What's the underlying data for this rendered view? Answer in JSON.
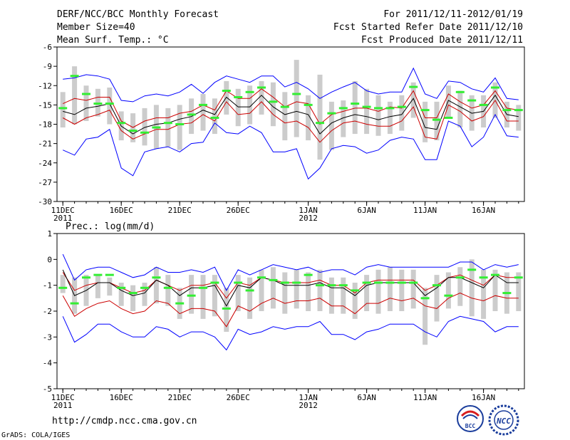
{
  "header": {
    "title": "DERF/NCC/BCC Monthly Forecast",
    "member_size": "Member Size=40",
    "variable": "Mean Surf. Temp.: °C",
    "forecast_period": "For 2011/12/11-2012/01/19",
    "start_date": "Fcst Started Refer Date 2011/12/10",
    "produced_date": "Fcst Produced Date 2011/12/11"
  },
  "footer": {
    "url": "http://cmdp.ncc.cma.gov.cn",
    "credit": "GrADS: COLA/IGES",
    "logo_left_text": "BCC",
    "logo_right_text": "NCC"
  },
  "chart_data": [
    {
      "type": "line",
      "name": "temperature",
      "title": "",
      "ylabel": "Mean Surf. Temp.: °C",
      "ylim": [
        -30,
        -6
      ],
      "yticks": [
        -6,
        -9,
        -12,
        -15,
        -18,
        -21,
        -24,
        -27,
        -30
      ],
      "x_days": 40,
      "xticks": [
        {
          "day": 1,
          "label": "11DEC",
          "sub": "2011"
        },
        {
          "day": 6,
          "label": "16DEC",
          "sub": ""
        },
        {
          "day": 11,
          "label": "21DEC",
          "sub": ""
        },
        {
          "day": 16,
          "label": "26DEC",
          "sub": ""
        },
        {
          "day": 22,
          "label": "1JAN",
          "sub": "2012"
        },
        {
          "day": 27,
          "label": "6JAN",
          "sub": ""
        },
        {
          "day": 32,
          "label": "11JAN",
          "sub": ""
        },
        {
          "day": 37,
          "label": "16JAN",
          "sub": ""
        }
      ],
      "series": [
        {
          "name": "ensemble-max",
          "color": "#0000ff",
          "values": [
            -11.0,
            -10.8,
            -10.3,
            -10.5,
            -11.0,
            -14.3,
            -14.5,
            -13.6,
            -13.3,
            -13.6,
            -13.0,
            -11.8,
            -13.2,
            -11.5,
            -10.5,
            -11.0,
            -11.5,
            -10.5,
            -10.5,
            -12.2,
            -11.5,
            -12.5,
            -14.0,
            -13.0,
            -12.2,
            -11.5,
            -12.8,
            -13.3,
            -13.0,
            -13.0,
            -9.3,
            -13.3,
            -14.0,
            -11.3,
            -11.5,
            -12.5,
            -13.0,
            -10.8,
            -14.0,
            -14.2
          ]
        },
        {
          "name": "ensemble-min",
          "color": "#0000ff",
          "values": [
            -22.0,
            -22.8,
            -20.3,
            -20.0,
            -18.8,
            -24.8,
            -26.0,
            -22.3,
            -21.8,
            -21.5,
            -22.3,
            -21.0,
            -20.8,
            -17.8,
            -19.3,
            -19.5,
            -18.3,
            -19.3,
            -22.3,
            -22.3,
            -21.8,
            -26.5,
            -24.8,
            -21.8,
            -21.3,
            -21.5,
            -22.5,
            -22.0,
            -20.5,
            -20.0,
            -20.3,
            -23.5,
            -23.5,
            -17.5,
            -18.3,
            -21.5,
            -20.0,
            -16.5,
            -19.8,
            -20.0
          ]
        },
        {
          "name": "upper-red",
          "color": "#cc0000",
          "values": [
            -14.8,
            -14.0,
            -14.3,
            -13.8,
            -13.8,
            -17.5,
            -18.5,
            -17.5,
            -17.0,
            -17.0,
            -16.3,
            -16.0,
            -15.0,
            -15.8,
            -12.8,
            -14.0,
            -14.0,
            -12.5,
            -13.8,
            -15.3,
            -14.5,
            -14.8,
            -18.0,
            -16.5,
            -16.0,
            -15.5,
            -15.5,
            -16.0,
            -15.3,
            -15.5,
            -12.8,
            -17.0,
            -17.0,
            -13.3,
            -14.5,
            -15.5,
            -15.0,
            -12.8,
            -15.5,
            -15.8
          ]
        },
        {
          "name": "lower-red",
          "color": "#cc0000",
          "values": [
            -17.0,
            -18.0,
            -17.0,
            -16.5,
            -15.8,
            -19.0,
            -20.3,
            -19.5,
            -18.8,
            -18.8,
            -18.0,
            -17.8,
            -16.5,
            -17.5,
            -14.5,
            -16.5,
            -16.3,
            -14.5,
            -16.5,
            -17.8,
            -17.5,
            -18.5,
            -20.8,
            -19.0,
            -17.8,
            -17.5,
            -18.0,
            -18.3,
            -18.3,
            -17.5,
            -15.3,
            -20.0,
            -20.3,
            -15.0,
            -16.0,
            -17.5,
            -16.8,
            -14.3,
            -17.5,
            -17.5
          ]
        },
        {
          "name": "ensemble-mean",
          "color": "#000000",
          "values": [
            -16.0,
            -16.5,
            -15.5,
            -15.2,
            -14.8,
            -18.3,
            -19.5,
            -18.5,
            -18.0,
            -17.8,
            -17.2,
            -16.8,
            -15.8,
            -16.5,
            -13.8,
            -15.3,
            -15.3,
            -13.5,
            -15.3,
            -16.5,
            -16.0,
            -16.5,
            -19.5,
            -17.8,
            -17.0,
            -16.5,
            -16.8,
            -17.3,
            -16.8,
            -16.5,
            -14.0,
            -18.5,
            -18.8,
            -14.3,
            -15.3,
            -16.3,
            -16.0,
            -13.5,
            -16.5,
            -16.8
          ]
        },
        {
          "name": "observed",
          "color": "#33ee33",
          "values": [
            -15.5,
            -10.5,
            -13.3,
            -14.8,
            -14.8,
            -17.8,
            -19.0,
            -19.3,
            -18.5,
            -17.8,
            -18.0,
            -16.5,
            -15.0,
            -17.0,
            -12.8,
            -13.8,
            -13.0,
            -12.3,
            -14.5,
            -15.3,
            -13.3,
            -15.0,
            -17.8,
            -16.3,
            -15.5,
            -14.8,
            -15.3,
            -15.5,
            -15.5,
            -15.3,
            -12.2,
            -15.8,
            -17.3,
            -17.0,
            -13.0,
            -14.3,
            -15.0,
            -12.3,
            -15.8,
            -15.8
          ]
        },
        {
          "name": "spread-bar-top",
          "color": "#cccccc",
          "values": [
            -13.0,
            -9.0,
            -12.0,
            -12.5,
            -12.3,
            -16.0,
            -16.3,
            -15.5,
            -15.0,
            -15.5,
            -15.0,
            -14.0,
            -13.3,
            -14.0,
            -11.3,
            -12.5,
            -12.0,
            -11.3,
            -11.5,
            -13.0,
            -8.0,
            -13.5,
            -10.3,
            -14.5,
            -14.3,
            -11.3,
            -12.5,
            -13.5,
            -14.5,
            -13.5,
            -11.5,
            -14.5,
            -14.5,
            -12.0,
            -12.8,
            -13.5,
            -13.5,
            -11.5,
            -14.5,
            -15.0
          ]
        },
        {
          "name": "spread-bar-bottom",
          "color": "#cccccc",
          "values": [
            -18.5,
            -18.0,
            -17.5,
            -16.8,
            -18.0,
            -20.5,
            -20.8,
            -21.3,
            -21.8,
            -21.5,
            -22.0,
            -19.5,
            -19.0,
            -19.5,
            -16.5,
            -18.3,
            -18.0,
            -16.5,
            -18.3,
            -20.5,
            -20.0,
            -20.5,
            -23.5,
            -22.0,
            -20.0,
            -19.5,
            -19.5,
            -19.8,
            -19.5,
            -19.0,
            -17.0,
            -20.8,
            -20.5,
            -17.0,
            -18.5,
            -19.0,
            -18.5,
            -17.0,
            -18.5,
            -19.0
          ]
        }
      ]
    },
    {
      "type": "line",
      "name": "precipitation",
      "title": "",
      "ylabel": "Prec.: log(mm/d)",
      "ylim": [
        -5,
        1
      ],
      "yticks": [
        1,
        0,
        -1,
        -2,
        -3,
        -4,
        -5
      ],
      "x_days": 40,
      "xticks": [
        {
          "day": 1,
          "label": "11DEC",
          "sub": "2011"
        },
        {
          "day": 6,
          "label": "16DEC",
          "sub": ""
        },
        {
          "day": 11,
          "label": "21DEC",
          "sub": ""
        },
        {
          "day": 16,
          "label": "26DEC",
          "sub": ""
        },
        {
          "day": 22,
          "label": "1JAN",
          "sub": "2012"
        },
        {
          "day": 27,
          "label": "6JAN",
          "sub": ""
        },
        {
          "day": 32,
          "label": "11JAN",
          "sub": ""
        },
        {
          "day": 37,
          "label": "16JAN",
          "sub": ""
        }
      ],
      "series": [
        {
          "name": "ensemble-max",
          "color": "#0000ff",
          "values": [
            0.2,
            -0.8,
            -0.4,
            -0.3,
            -0.3,
            -0.5,
            -0.7,
            -0.6,
            -0.3,
            -0.5,
            -0.5,
            -0.4,
            -0.5,
            -0.3,
            -1.2,
            -0.4,
            -0.6,
            -0.4,
            -0.2,
            -0.3,
            -0.4,
            -0.3,
            -0.5,
            -0.4,
            -0.4,
            -0.6,
            -0.3,
            -0.2,
            -0.3,
            -0.3,
            -0.3,
            -0.3,
            -0.3,
            -0.3,
            -0.1,
            -0.1,
            -0.4,
            -0.2,
            -0.3,
            -0.2
          ]
        },
        {
          "name": "ensemble-min",
          "color": "#0000ff",
          "values": [
            -2.2,
            -3.2,
            -2.9,
            -2.5,
            -2.5,
            -2.8,
            -3.0,
            -3.0,
            -2.6,
            -2.7,
            -3.0,
            -2.8,
            -2.8,
            -3.0,
            -3.5,
            -2.7,
            -2.9,
            -2.8,
            -2.6,
            -2.7,
            -2.6,
            -2.6,
            -2.4,
            -2.9,
            -2.9,
            -3.1,
            -2.8,
            -2.7,
            -2.5,
            -2.5,
            -2.5,
            -2.8,
            -3.0,
            -2.4,
            -2.2,
            -2.3,
            -2.4,
            -2.8,
            -2.6,
            -2.6
          ]
        },
        {
          "name": "upper-red",
          "color": "#cc0000",
          "values": [
            -0.5,
            -1.2,
            -1.0,
            -0.9,
            -0.9,
            -1.1,
            -1.3,
            -1.2,
            -0.8,
            -1.0,
            -1.2,
            -1.0,
            -1.0,
            -0.9,
            -1.5,
            -0.9,
            -1.0,
            -0.7,
            -0.8,
            -0.9,
            -0.9,
            -0.9,
            -0.8,
            -1.0,
            -1.0,
            -1.3,
            -0.9,
            -0.8,
            -0.8,
            -0.8,
            -0.8,
            -1.2,
            -1.0,
            -0.7,
            -0.6,
            -0.8,
            -1.0,
            -0.6,
            -0.7,
            -0.7
          ]
        },
        {
          "name": "lower-red",
          "color": "#cc0000",
          "values": [
            -1.4,
            -2.2,
            -1.9,
            -1.7,
            -1.6,
            -1.9,
            -2.1,
            -2.0,
            -1.6,
            -1.7,
            -2.1,
            -1.9,
            -1.9,
            -2.0,
            -2.6,
            -1.8,
            -2.0,
            -1.7,
            -1.5,
            -1.7,
            -1.6,
            -1.6,
            -1.5,
            -1.8,
            -1.8,
            -2.1,
            -1.7,
            -1.7,
            -1.5,
            -1.6,
            -1.5,
            -1.8,
            -1.9,
            -1.5,
            -1.3,
            -1.5,
            -1.6,
            -1.4,
            -1.5,
            -1.5
          ]
        },
        {
          "name": "ensemble-mean",
          "color": "#000000",
          "values": [
            -0.4,
            -1.4,
            -1.2,
            -0.9,
            -0.9,
            -1.2,
            -1.4,
            -1.3,
            -0.8,
            -1.0,
            -1.4,
            -1.1,
            -1.1,
            -1.0,
            -1.8,
            -1.0,
            -1.1,
            -0.7,
            -0.8,
            -1.0,
            -1.0,
            -1.0,
            -0.9,
            -1.1,
            -1.1,
            -1.4,
            -1.0,
            -0.9,
            -0.9,
            -0.9,
            -0.9,
            -1.4,
            -1.1,
            -0.7,
            -0.7,
            -0.9,
            -1.1,
            -0.6,
            -0.9,
            -0.9
          ]
        },
        {
          "name": "observed",
          "color": "#33ee33",
          "values": [
            -1.1,
            -1.7,
            -0.7,
            -0.6,
            -0.6,
            -1.1,
            -1.3,
            -1.1,
            -0.7,
            -1.1,
            -1.7,
            -1.4,
            -1.1,
            -0.9,
            -1.9,
            -0.9,
            -1.2,
            -0.7,
            -0.8,
            -0.9,
            -0.9,
            -0.6,
            -1.0,
            -1.0,
            -1.0,
            -1.2,
            -0.9,
            -0.9,
            -0.9,
            -0.9,
            -0.9,
            -1.5,
            -1.0,
            -1.4,
            -0.7,
            -0.4,
            -0.7,
            -0.6,
            -1.3,
            -0.7
          ]
        },
        {
          "name": "spread-bar-top",
          "color": "#cccccc",
          "values": [
            -0.6,
            -0.7,
            -0.6,
            -0.6,
            -0.7,
            -0.9,
            -1.0,
            -0.9,
            -0.3,
            -0.6,
            -1.1,
            -0.6,
            -0.6,
            -0.6,
            -1.1,
            -0.6,
            -0.7,
            -0.4,
            -0.3,
            -0.5,
            -0.4,
            -0.5,
            -0.4,
            -0.7,
            -0.7,
            -0.9,
            -0.6,
            -0.4,
            -0.3,
            -0.4,
            -0.4,
            -1.1,
            -0.6,
            -0.5,
            -0.3,
            0.0,
            -0.4,
            -0.4,
            -0.5,
            -0.5
          ]
        },
        {
          "name": "spread-bar-bottom",
          "color": "#cccccc",
          "values": [
            -1.3,
            -2.1,
            -1.8,
            -1.5,
            -1.4,
            -1.8,
            -2.0,
            -1.8,
            -1.7,
            -1.8,
            -2.3,
            -2.1,
            -2.3,
            -2.2,
            -2.8,
            -2.0,
            -2.3,
            -2.0,
            -1.9,
            -2.1,
            -1.9,
            -2.0,
            -2.0,
            -2.1,
            -2.1,
            -2.3,
            -2.0,
            -2.1,
            -2.0,
            -2.0,
            -1.9,
            -3.3,
            -2.4,
            -1.9,
            -1.8,
            -2.2,
            -2.3,
            -2.0,
            -2.1,
            -2.0
          ]
        }
      ]
    }
  ]
}
